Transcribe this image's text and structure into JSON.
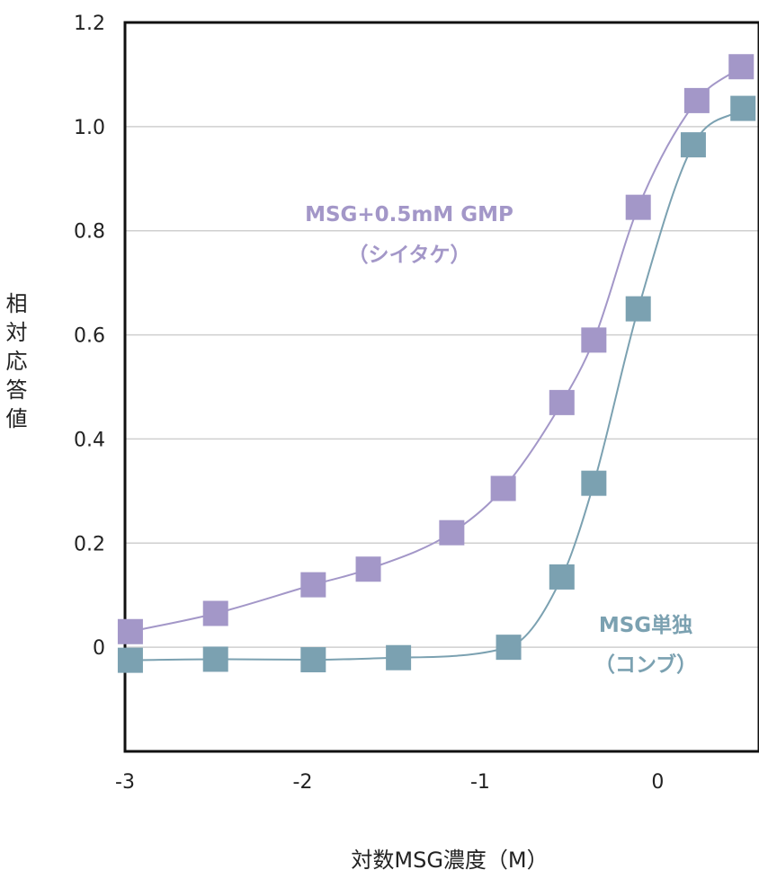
{
  "chart_data": {
    "type": "scatter",
    "xlabel": "対数MSG濃度（M）",
    "ylabel": "相対応答値",
    "xlim": [
      -3,
      0.57
    ],
    "ylim": [
      -0.2,
      1.2
    ],
    "x_ticks": [
      "-3",
      "-2",
      "-1",
      "0"
    ],
    "y_ticks": [
      "0",
      "0.2",
      "0.4",
      "0.6",
      "0.8",
      "1.0",
      "1.2"
    ],
    "grid": true,
    "series": [
      {
        "name": "MSG+0.5mM GMP（シイタケ）",
        "color": "#a397c8",
        "x": [
          -2.97,
          -2.49,
          -1.94,
          -1.63,
          -1.16,
          -0.87,
          -0.54,
          -0.36,
          -0.11,
          0.22,
          0.47
        ],
        "y": [
          0.03,
          0.065,
          0.12,
          0.15,
          0.22,
          0.305,
          0.47,
          0.59,
          0.845,
          1.05,
          1.115
        ]
      },
      {
        "name": "MSG単独（コンブ）",
        "color": "#7ba1b1",
        "x": [
          -2.97,
          -2.49,
          -1.94,
          -1.46,
          -0.84,
          -0.54,
          -0.36,
          -0.11,
          0.2,
          0.48
        ],
        "y": [
          -0.025,
          -0.023,
          -0.024,
          -0.02,
          0.0,
          0.135,
          0.315,
          0.65,
          0.965,
          1.035
        ]
      }
    ],
    "annotations": [
      {
        "series": 0,
        "line1": "MSG+0.5mM GMP",
        "line2": "（シイタケ）"
      },
      {
        "series": 1,
        "line1": "MSG単独",
        "line2": "（コンブ）"
      }
    ]
  }
}
